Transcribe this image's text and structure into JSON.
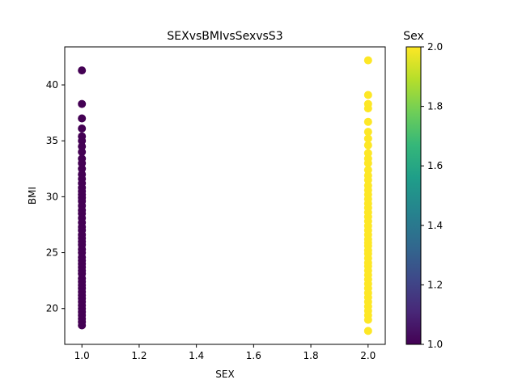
{
  "chart_data": {
    "type": "scatter",
    "title": "SEXvsBMIvsSexvsS3",
    "xlabel": "SEX",
    "ylabel": "BMI",
    "xlim": [
      0.94,
      2.06
    ],
    "ylim": [
      16.8,
      43.4
    ],
    "x_ticks": [
      {
        "value": 1.0,
        "label": "1.0"
      },
      {
        "value": 1.2,
        "label": "1.2"
      },
      {
        "value": 1.4,
        "label": "1.4"
      },
      {
        "value": 1.6,
        "label": "1.6"
      },
      {
        "value": 1.8,
        "label": "1.8"
      },
      {
        "value": 2.0,
        "label": "2.0"
      }
    ],
    "y_ticks": [
      {
        "value": 20,
        "label": "20"
      },
      {
        "value": 25,
        "label": "25"
      },
      {
        "value": 30,
        "label": "30"
      },
      {
        "value": 35,
        "label": "35"
      },
      {
        "value": 40,
        "label": "40"
      }
    ],
    "grid": false,
    "colormap": "viridis",
    "colorbar": {
      "label": "Sex",
      "range": [
        1.0,
        2.0
      ],
      "ticks": [
        {
          "value": 1.0,
          "label": "1.0"
        },
        {
          "value": 1.2,
          "label": "1.2"
        },
        {
          "value": 1.4,
          "label": "1.4"
        },
        {
          "value": 1.6,
          "label": "1.6"
        },
        {
          "value": 1.8,
          "label": "1.8"
        },
        {
          "value": 2.0,
          "label": "2.0"
        }
      ]
    },
    "series": [
      {
        "x": 1.0,
        "color_value": 1.0,
        "color": "#440154",
        "y": [
          41.3,
          38.3,
          37.0,
          36.1,
          35.4,
          35.0,
          34.5,
          34.0,
          33.4,
          33.0,
          32.5,
          32.0,
          31.6,
          31.2,
          30.8,
          30.5,
          30.2,
          29.9,
          29.6,
          29.2,
          28.8,
          28.5,
          28.1,
          27.7,
          27.3,
          27.0,
          26.6,
          26.3,
          26.0,
          25.7,
          25.3,
          25.0,
          24.6,
          24.3,
          24.0,
          23.7,
          23.4,
          23.1,
          22.7,
          22.4,
          22.1,
          21.8,
          21.5,
          21.2,
          20.9,
          20.6,
          20.3,
          20.0,
          19.7,
          19.4,
          19.1,
          18.8,
          18.5
        ]
      },
      {
        "x": 2.0,
        "color_value": 2.0,
        "color": "#fde725",
        "y": [
          42.2,
          39.1,
          38.3,
          37.9,
          36.7,
          35.8,
          35.2,
          34.6,
          33.9,
          33.4,
          33.0,
          32.4,
          31.9,
          31.5,
          31.0,
          30.6,
          30.2,
          29.8,
          29.4,
          29.0,
          28.6,
          28.2,
          27.8,
          27.4,
          27.0,
          26.6,
          26.2,
          25.9,
          25.6,
          25.2,
          24.9,
          24.5,
          24.1,
          23.8,
          23.4,
          23.0,
          22.6,
          22.2,
          21.8,
          21.4,
          21.0,
          20.6,
          20.2,
          19.8,
          19.4,
          19.0,
          18.0
        ]
      }
    ]
  }
}
